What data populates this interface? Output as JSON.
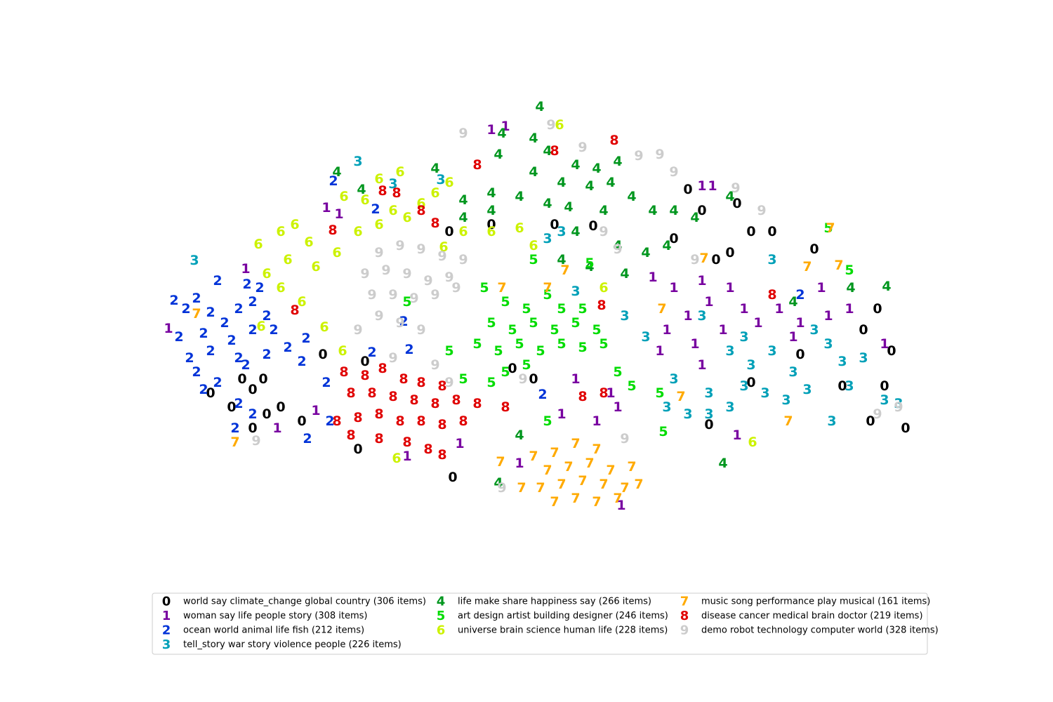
{
  "chart_data": {
    "type": "scatter",
    "xlim": [
      190,
      1350
    ],
    "ylim": [
      120,
      880
    ],
    "series": [
      {
        "name": "world say climate_change global country (306 items)",
        "marker": "0",
        "color": "#000000",
        "x": [
          345,
          360,
          375,
          300,
          330,
          380,
          400,
          360,
          430,
          510,
          460,
          640,
          700,
          790,
          845,
          730,
          760,
          980,
          1000,
          1050,
          1070,
          1040,
          960,
          1100,
          1020,
          1160,
          1250,
          1270,
          1230,
          1200,
          1260,
          1240,
          1290,
          1010,
          1070,
          645,
          520,
          1140
        ],
        "y": [
          460,
          445,
          460,
          440,
          420,
          410,
          420,
          390,
          400,
          360,
          495,
          670,
          680,
          680,
          678,
          475,
          460,
          730,
          700,
          710,
          670,
          640,
          660,
          670,
          630,
          645,
          560,
          500,
          530,
          450,
          450,
          400,
          390,
          395,
          455,
          320,
          485,
          495
        ]
      },
      {
        "name": "woman say life people story (308 items)",
        "marker": "1",
        "color": "#7800a0",
        "x": [
          240,
          350,
          465,
          483,
          930,
          960,
          1000,
          1040,
          1010,
          980,
          950,
          990,
          1030,
          1060,
          1080,
          1110,
          1140,
          1170,
          1180,
          1130,
          1000,
          940,
          870,
          880,
          850,
          800,
          820,
          740,
          885,
          1050,
          1210,
          1260,
          1000,
          1015,
          700,
          720,
          655,
          580,
          395,
          450
        ],
        "y": [
          532,
          617,
          704,
          695,
          605,
          590,
          600,
          590,
          570,
          550,
          530,
          510,
          530,
          560,
          540,
          560,
          540,
          590,
          550,
          520,
          480,
          500,
          440,
          420,
          400,
          410,
          460,
          340,
          280,
          380,
          560,
          510,
          735,
          735,
          815,
          820,
          368,
          350,
          390,
          415
        ]
      },
      {
        "name": "ocean world animal life fish (212 items)",
        "marker": "2",
        "color": "#0033d8",
        "x": [
          248,
          265,
          280,
          300,
          320,
          340,
          360,
          380,
          255,
          290,
          330,
          360,
          390,
          270,
          300,
          340,
          380,
          410,
          280,
          310,
          350,
          290,
          340,
          360,
          335,
          310,
          352,
          370,
          475,
          535,
          436,
          430,
          465,
          470,
          438,
          575,
          773,
          530,
          583,
          1140
        ],
        "y": [
          572,
          560,
          575,
          555,
          540,
          560,
          570,
          550,
          520,
          525,
          515,
          530,
          530,
          490,
          500,
          490,
          495,
          505,
          470,
          455,
          480,
          445,
          425,
          410,
          390,
          600,
          595,
          590,
          742,
          702,
          518,
          485,
          455,
          400,
          375,
          542,
          438,
          498,
          502,
          580
        ]
      },
      {
        "name": "tell_story war story violence people (226 items)",
        "marker": "3",
        "color": "#00a0b8",
        "x": [
          510,
          277,
          1040,
          1070,
          1100,
          1130,
          1060,
          1090,
          1120,
          1150,
          1010,
          1040,
          980,
          950,
          1200,
          1230,
          1180,
          1210,
          1260,
          1280,
          1185,
          1000,
          1060,
          1160,
          1100,
          780,
          800,
          820,
          890,
          920,
          960,
          1010,
          560,
          628
        ],
        "y": [
          770,
          629,
          500,
          480,
          500,
          470,
          450,
          440,
          430,
          445,
          440,
          420,
          410,
          420,
          485,
          490,
          510,
          450,
          430,
          425,
          400,
          550,
          520,
          530,
          630,
          660,
          670,
          585,
          550,
          520,
          460,
          410,
          738,
          744
        ]
      },
      {
        "name": "life make share happiness say (266 items)",
        "marker": "4",
        "color": "#00961e",
        "x": [
          769,
          715,
          760,
          780,
          710,
          820,
          850,
          880,
          760,
          800,
          840,
          870,
          620,
          660,
          700,
          740,
          780,
          810,
          660,
          700,
          900,
          930,
          960,
          990,
          860,
          820,
          880,
          920,
          950,
          800,
          840,
          890,
          1040,
          1130,
          1212,
          1263,
          1030,
          710,
          740,
          480,
          515
        ],
        "y": [
          848,
          810,
          803,
          785,
          780,
          765,
          760,
          770,
          755,
          740,
          735,
          740,
          760,
          715,
          725,
          720,
          710,
          705,
          690,
          700,
          720,
          700,
          700,
          690,
          700,
          670,
          650,
          640,
          650,
          630,
          620,
          610,
          720,
          570,
          590,
          592,
          340,
          312,
          380,
          755,
          730
        ]
      },
      {
        "name": "art design artist building designer (246 items)",
        "marker": "5",
        "color": "#00dc00",
        "x": [
          690,
          720,
          750,
          780,
          800,
          830,
          700,
          730,
          760,
          790,
          820,
          850,
          680,
          710,
          740,
          770,
          800,
          830,
          860,
          720,
          750,
          700,
          880,
          900,
          940,
          1210,
          1180,
          945,
          780,
          640,
          660,
          580,
          760,
          840
        ],
        "y": [
          590,
          570,
          560,
          580,
          560,
          560,
          540,
          530,
          540,
          530,
          540,
          530,
          510,
          500,
          510,
          500,
          510,
          505,
          510,
          470,
          480,
          455,
          470,
          450,
          440,
          615,
          675,
          385,
          400,
          500,
          460,
          570,
          630,
          625
        ]
      },
      {
        "name": "universe brain science human life (228 items)",
        "marker": "6",
        "color": "#ccf200",
        "x": [
          368,
          400,
          420,
          440,
          410,
          380,
          450,
          400,
          430,
          480,
          510,
          540,
          560,
          580,
          600,
          620,
          570,
          540,
          490,
          520,
          640,
          700,
          740,
          760,
          660,
          860,
          797,
          372,
          462,
          488,
          565,
          1072,
          632
        ],
        "y": [
          652,
          670,
          680,
          655,
          630,
          610,
          620,
          590,
          570,
          640,
          670,
          680,
          700,
          690,
          710,
          725,
          755,
          745,
          720,
          715,
          740,
          670,
          675,
          650,
          670,
          590,
          822,
          535,
          534,
          500,
          347,
          370,
          648
        ]
      },
      {
        "name": "music song performance play musical (161 items)",
        "marker": "7",
        "color": "#ffaa00",
        "x": [
          760,
          790,
          820,
          850,
          780,
          810,
          840,
          870,
          900,
          770,
          800,
          830,
          860,
          890,
          910,
          790,
          820,
          850,
          880,
          713,
          743,
          715,
          780,
          943,
          1183,
          1003,
          1195,
          1150,
          280,
          335,
          970,
          1123,
          805
        ],
        "y": [
          350,
          355,
          368,
          360,
          330,
          335,
          340,
          330,
          335,
          305,
          310,
          315,
          310,
          305,
          310,
          285,
          290,
          285,
          290,
          342,
          305,
          590,
          590,
          560,
          675,
          632,
          622,
          620,
          553,
          370,
          435,
          400,
          615
        ]
      },
      {
        "name": "disease cancer medical brain doctor (219 items)",
        "marker": "8",
        "color": "#e00000",
        "x": [
          490,
          520,
          545,
          575,
          600,
          630,
          500,
          530,
          560,
          590,
          620,
          650,
          680,
          480,
          510,
          540,
          570,
          600,
          630,
          660,
          500,
          540,
          580,
          610,
          630,
          545,
          565,
          600,
          620,
          474,
          420,
          857,
          1100,
          830,
          860,
          720,
          790,
          875,
          680
        ],
        "y": [
          470,
          465,
          475,
          460,
          455,
          450,
          440,
          440,
          435,
          430,
          425,
          430,
          425,
          400,
          405,
          410,
          400,
          400,
          395,
          400,
          380,
          375,
          370,
          360,
          352,
          728,
          725,
          700,
          682,
          672,
          558,
          565,
          580,
          435,
          440,
          420,
          785,
          800,
          765
        ]
      },
      {
        "name": "demo robot technology computer world (328 items)",
        "marker": "9",
        "color": "#cccccc",
        "x": [
          540,
          570,
          600,
          630,
          660,
          520,
          550,
          580,
          610,
          640,
          530,
          560,
          590,
          620,
          650,
          540,
          570,
          600,
          510,
          560,
          640,
          830,
          910,
          940,
          960,
          860,
          880,
          1048,
          1085,
          1250,
          1280,
          715,
          890,
          365,
          620,
          660,
          785,
          745,
          990
        ],
        "y": [
          640,
          650,
          645,
          635,
          630,
          610,
          615,
          610,
          600,
          605,
          580,
          580,
          575,
          580,
          590,
          550,
          540,
          530,
          530,
          490,
          455,
          790,
          778,
          780,
          755,
          670,
          645,
          732,
          700,
          410,
          420,
          305,
          375,
          372,
          480,
          810,
          822,
          460,
          630
        ]
      }
    ]
  }
}
